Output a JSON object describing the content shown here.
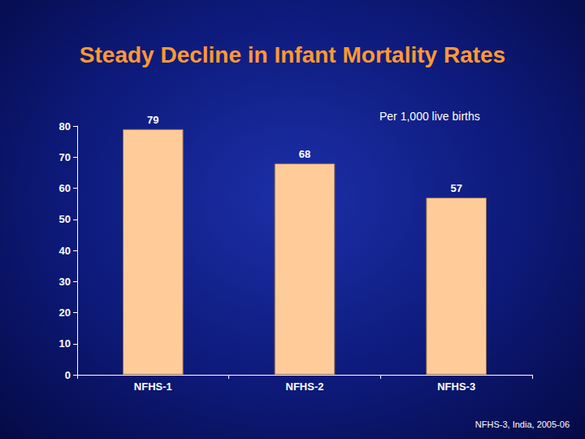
{
  "chart_data": {
    "type": "bar",
    "title": "Steady Decline in Infant Mortality Rates",
    "subtitle": "Per 1,000 live births",
    "annotations": [
      "NFHS-3, India, 2005-06"
    ],
    "categories": [
      "NFHS-1",
      "NFHS-2",
      "NFHS-3"
    ],
    "values": [
      79,
      68,
      57
    ],
    "color": "#ffcc99",
    "ylim": [
      0,
      80
    ],
    "yticks": [
      0,
      10,
      20,
      30,
      40,
      50,
      60,
      70,
      80
    ],
    "grid": false,
    "data_labels": true
  }
}
